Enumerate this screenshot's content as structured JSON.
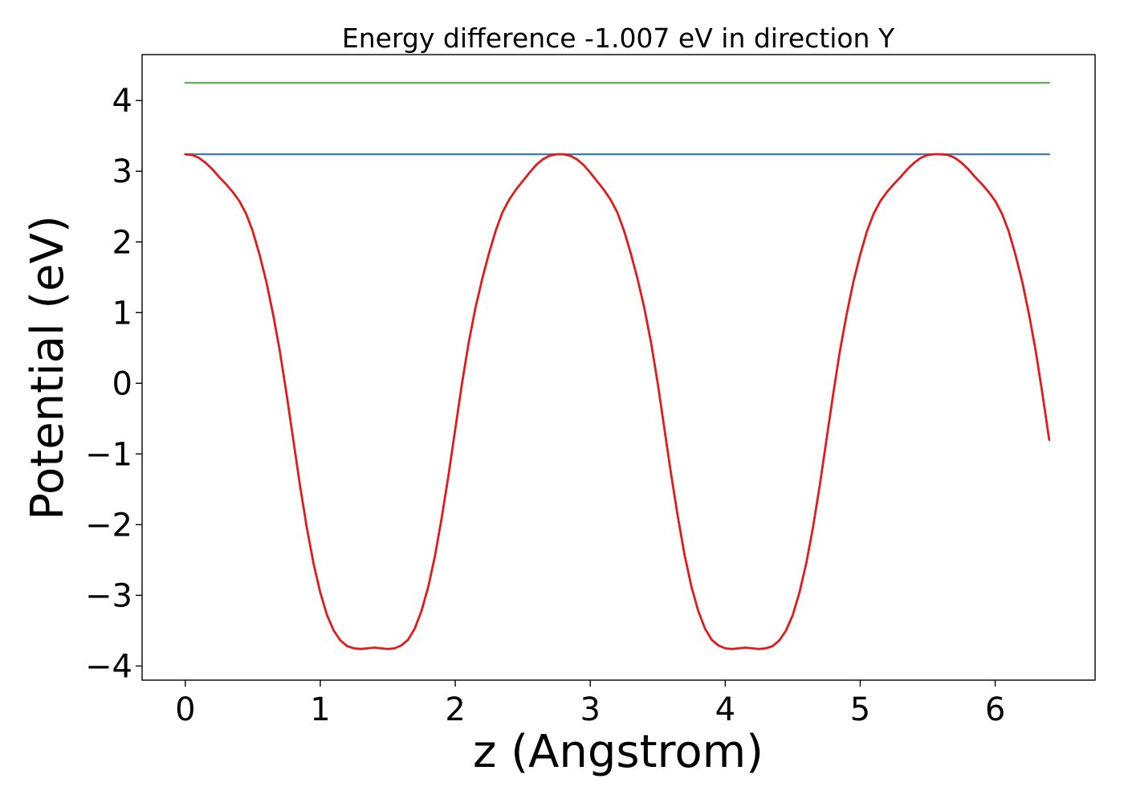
{
  "chart_data": {
    "type": "line",
    "title": "Energy difference -1.007 eV in direction Y",
    "xlabel": "z (Angstrom)",
    "ylabel": "Potential (eV)",
    "xlim": [
      -0.32,
      6.74
    ],
    "ylim": [
      -4.2,
      4.65
    ],
    "xticks": [
      0,
      1,
      2,
      3,
      4,
      5,
      6
    ],
    "yticks": [
      -4,
      -3,
      -2,
      -1,
      0,
      1,
      2,
      3,
      4
    ],
    "xtick_labels": [
      "0",
      "1",
      "2",
      "3",
      "4",
      "5",
      "6"
    ],
    "ytick_labels": [
      "−4",
      "−3",
      "−2",
      "−1",
      "0",
      "1",
      "2",
      "3",
      "4"
    ],
    "grid": false,
    "series": [
      {
        "color": "#e31a1c",
        "style": "line",
        "x": [
          0.0,
          0.05,
          0.1,
          0.15,
          0.2,
          0.25,
          0.3,
          0.35,
          0.4,
          0.45,
          0.5,
          0.55,
          0.6,
          0.65,
          0.7,
          0.75,
          0.8,
          0.85,
          0.9,
          0.95,
          1.0,
          1.05,
          1.1,
          1.15,
          1.2,
          1.25,
          1.3,
          1.35,
          1.4,
          1.45,
          1.5,
          1.55,
          1.6,
          1.65,
          1.7,
          1.75,
          1.8,
          1.85,
          1.9,
          1.95,
          2.0,
          2.05,
          2.1,
          2.15,
          2.2,
          2.25,
          2.3,
          2.35,
          2.4,
          2.45,
          2.5,
          2.55,
          2.6,
          2.65,
          2.7,
          2.75,
          2.8,
          2.85,
          2.9,
          2.95,
          3.0,
          3.05,
          3.1,
          3.15,
          3.2,
          3.25,
          3.3,
          3.35,
          3.4,
          3.45,
          3.5,
          3.55,
          3.6,
          3.65,
          3.7,
          3.75,
          3.8,
          3.85,
          3.9,
          3.95,
          4.0,
          4.05,
          4.1,
          4.15,
          4.2,
          4.25,
          4.3,
          4.35,
          4.4,
          4.45,
          4.5,
          4.55,
          4.6,
          4.65,
          4.7,
          4.75,
          4.8,
          4.85,
          4.9,
          4.95,
          5.0,
          5.05,
          5.1,
          5.15,
          5.2,
          5.25,
          5.3,
          5.35,
          5.4,
          5.45,
          5.5,
          5.55,
          5.6,
          5.65,
          5.7,
          5.75,
          5.8,
          5.85,
          5.9,
          5.95,
          6.0,
          6.05,
          6.1,
          6.15,
          6.2,
          6.25,
          6.3,
          6.35,
          6.4
        ],
        "y": [
          3.24,
          3.23,
          3.19,
          3.12,
          3.03,
          2.92,
          2.82,
          2.71,
          2.58,
          2.4,
          2.15,
          1.82,
          1.44,
          0.98,
          0.46,
          -0.15,
          -0.8,
          -1.45,
          -2.04,
          -2.55,
          -2.96,
          -3.28,
          -3.5,
          -3.64,
          -3.72,
          -3.75,
          -3.76,
          -3.75,
          -3.74,
          -3.75,
          -3.76,
          -3.75,
          -3.71,
          -3.63,
          -3.47,
          -3.22,
          -2.88,
          -2.44,
          -1.9,
          -1.3,
          -0.65,
          0.0,
          0.58,
          1.07,
          1.48,
          1.84,
          2.16,
          2.42,
          2.6,
          2.74,
          2.86,
          2.98,
          3.09,
          3.17,
          3.22,
          3.24,
          3.24,
          3.22,
          3.17,
          3.09,
          2.98,
          2.86,
          2.74,
          2.6,
          2.42,
          2.16,
          1.84,
          1.48,
          1.07,
          0.58,
          0.0,
          -0.65,
          -1.3,
          -1.9,
          -2.44,
          -2.88,
          -3.22,
          -3.47,
          -3.63,
          -3.71,
          -3.75,
          -3.76,
          -3.75,
          -3.74,
          -3.75,
          -3.76,
          -3.75,
          -3.72,
          -3.64,
          -3.5,
          -3.28,
          -2.96,
          -2.55,
          -2.04,
          -1.45,
          -0.8,
          -0.15,
          0.46,
          0.98,
          1.44,
          1.82,
          2.15,
          2.4,
          2.58,
          2.71,
          2.82,
          2.92,
          3.03,
          3.12,
          3.19,
          3.23,
          3.24,
          3.24,
          3.23,
          3.19,
          3.12,
          3.03,
          2.92,
          2.82,
          2.71,
          2.58,
          2.4,
          2.15,
          1.82,
          1.44,
          0.98,
          0.46,
          -0.15,
          -0.8
        ]
      },
      {
        "color": "#377eb8",
        "style": "hline",
        "x": [
          0.0,
          6.4
        ],
        "y": [
          3.24,
          3.24
        ]
      },
      {
        "color": "#4daf4a",
        "style": "hline",
        "x": [
          0.0,
          6.4
        ],
        "y": [
          4.25,
          4.25
        ]
      }
    ]
  }
}
